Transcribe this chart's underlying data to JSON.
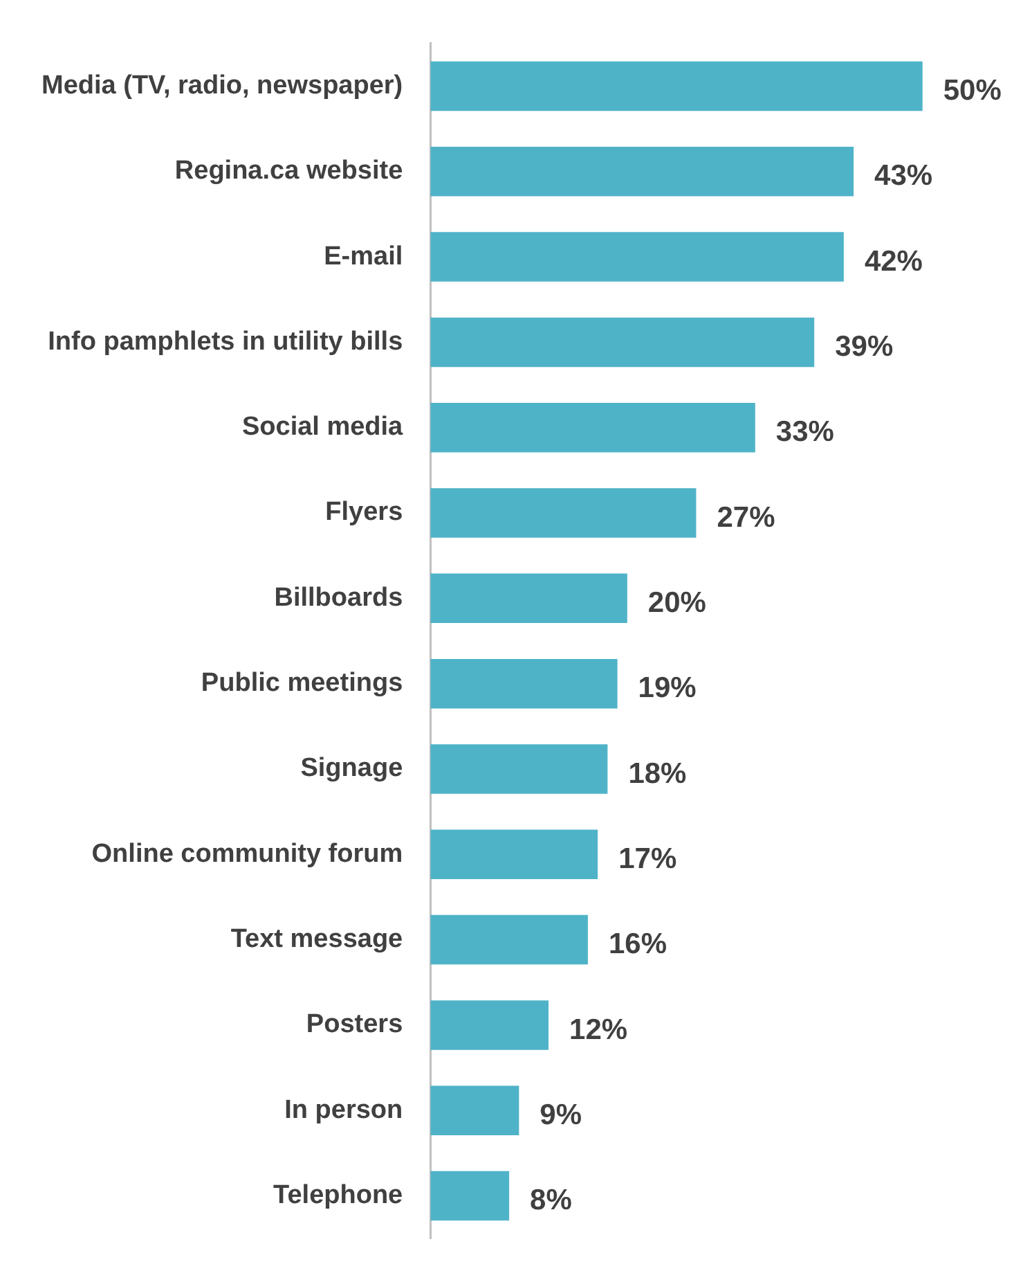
{
  "chart_data": {
    "type": "bar",
    "orientation": "horizontal",
    "color": "#4fb3c8",
    "categories": [
      "Media (TV, radio, newspaper)",
      "Regina.ca website",
      "E-mail",
      "Info pamphlets in utility bills",
      "Social media",
      "Flyers",
      "Billboards",
      "Public meetings",
      "Signage",
      "Online community forum",
      "Text message",
      "Posters",
      "In person",
      "Telephone"
    ],
    "values": [
      50,
      43,
      42,
      39,
      33,
      27,
      20,
      19,
      18,
      17,
      16,
      12,
      9,
      8
    ],
    "value_labels": [
      "50%",
      "43%",
      "42%",
      "39%",
      "33%",
      "27%",
      "20%",
      "19%",
      "18%",
      "17%",
      "16%",
      "12%",
      "9%",
      "8%"
    ]
  }
}
